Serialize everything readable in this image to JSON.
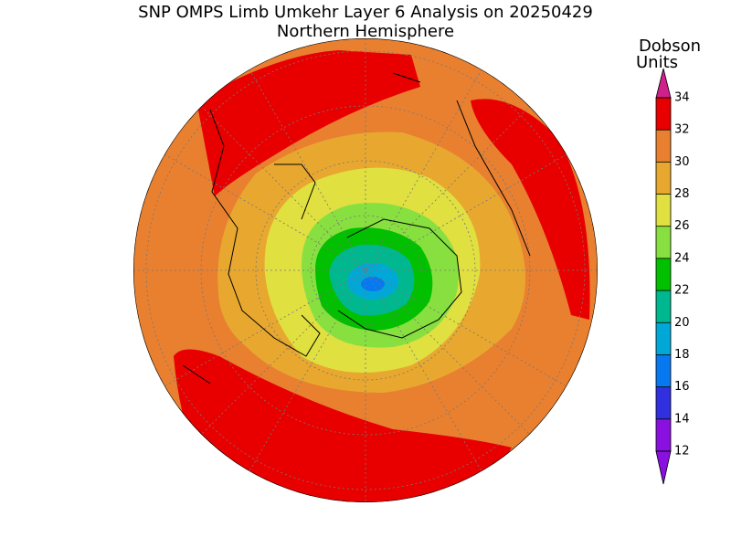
{
  "title": "SNP OMPS Limb Umkehr Layer 6 Analysis on 20250429",
  "subtitle": "Northern Hemisphere",
  "colorbar": {
    "label_lines": [
      "Dobson",
      "Units"
    ],
    "range": [
      12,
      34
    ],
    "ticks": [
      12,
      14,
      16,
      18,
      20,
      22,
      24,
      26,
      28,
      30,
      32,
      34
    ],
    "colors": [
      "#8a10e0",
      "#3030e0",
      "#0878f0",
      "#00a8d8",
      "#00b890",
      "#00c000",
      "#88e040",
      "#e0e040",
      "#e8a830",
      "#e88030",
      "#e80000"
    ],
    "under_color": "#8a10e0",
    "over_color": "#d0208c"
  }
}
